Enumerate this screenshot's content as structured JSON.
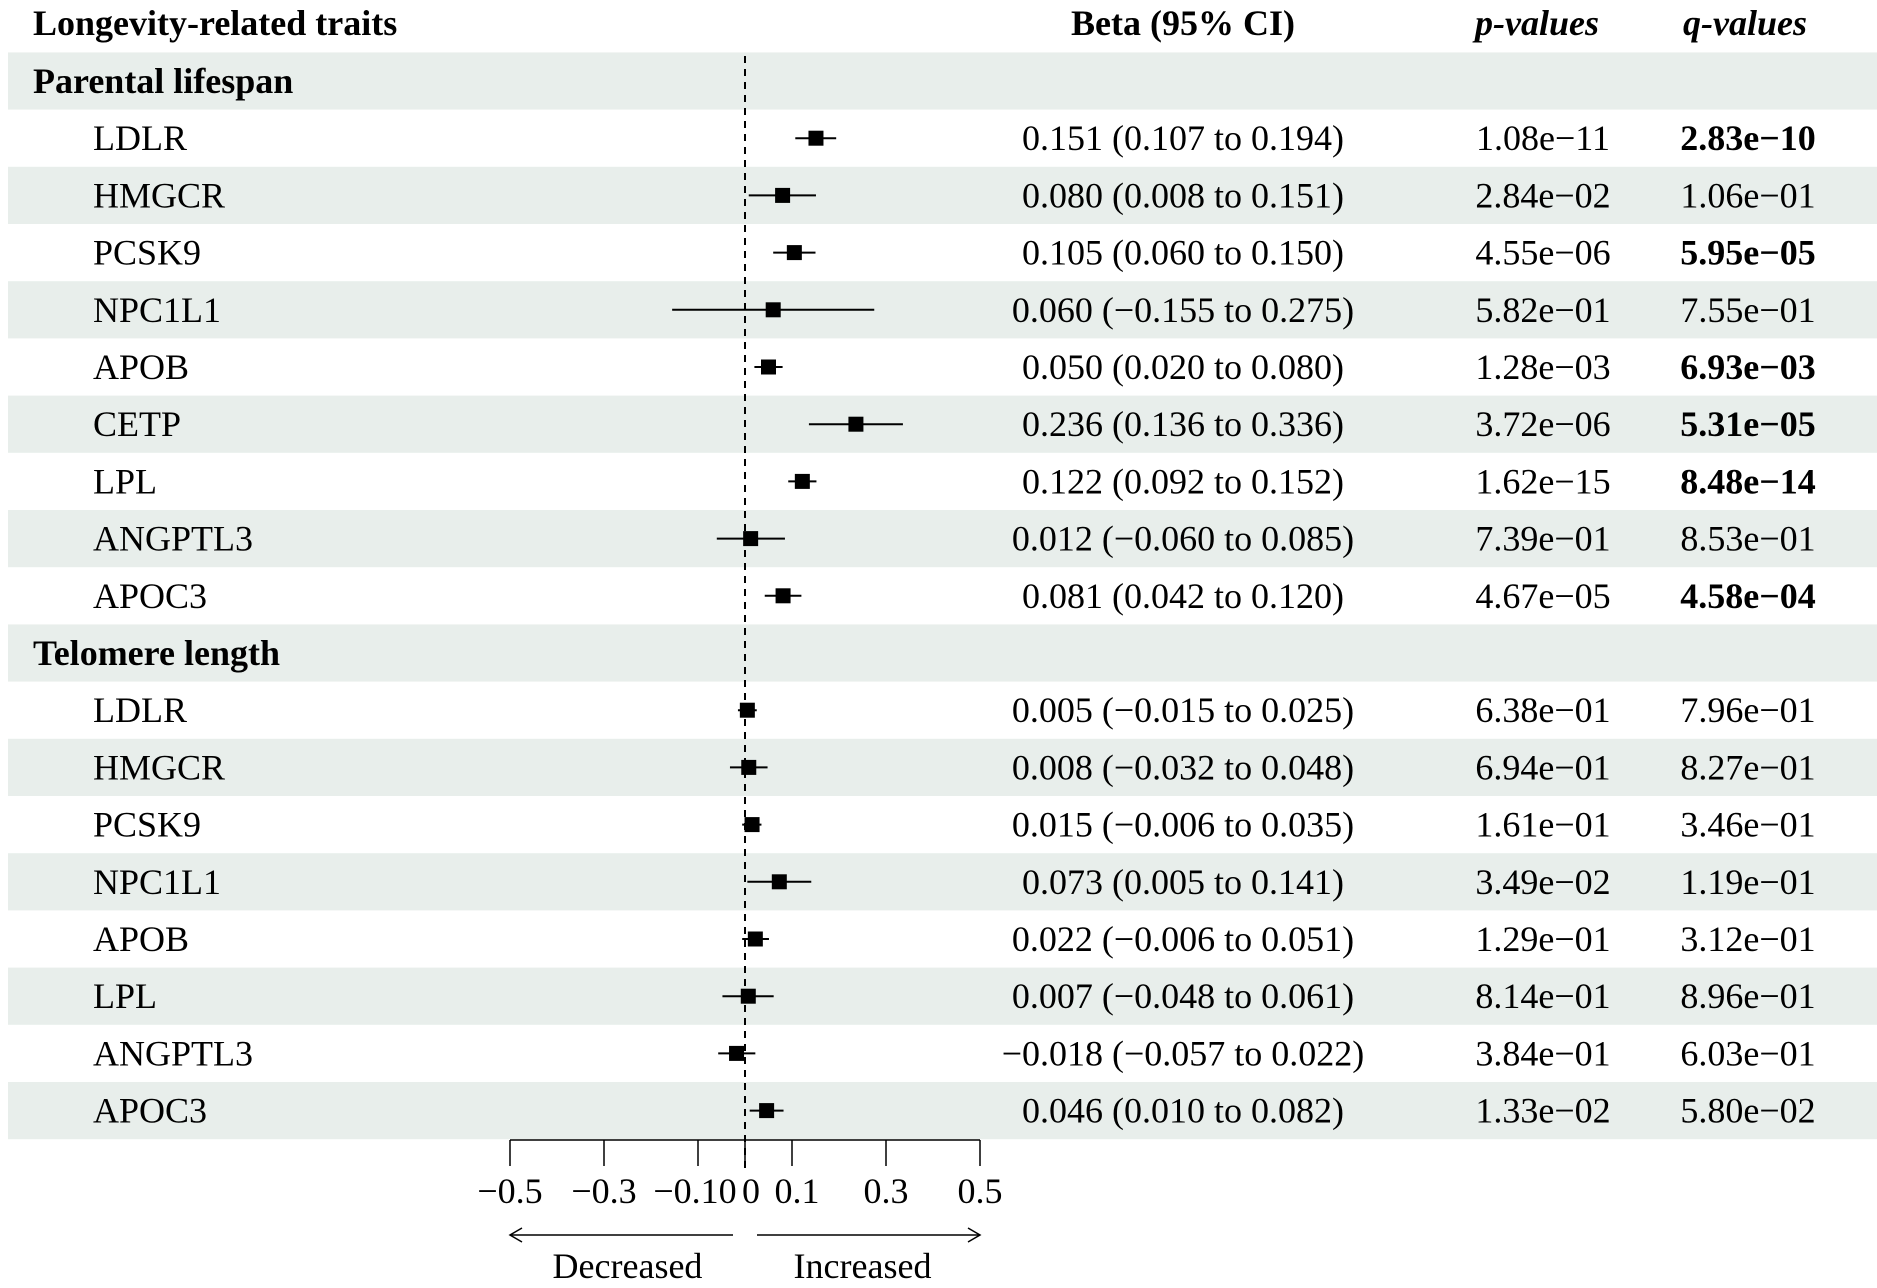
{
  "header": {
    "traits": "Longevity-related traits",
    "beta": "Beta (95% CI)",
    "p": "p-values",
    "q": "q-values"
  },
  "colors": {
    "band": "#e8eeeb",
    "mark": "#000000"
  },
  "chart_data": {
    "type": "forest",
    "xlim": [
      -0.5,
      0.5
    ],
    "x_ticks": [
      -0.5,
      -0.3,
      -0.1,
      0,
      0.1,
      0.3,
      0.5
    ],
    "x_tick_labels": [
      "−0.5",
      "−0.3",
      "−0.10",
      "0",
      "0.1",
      "0.3",
      "0.5"
    ],
    "reference_line": 0,
    "direction_labels": {
      "left": "Decreased",
      "right": "Increased"
    },
    "groups": [
      {
        "name": "Parental lifespan",
        "rows": [
          {
            "gene": "LDLR",
            "beta": 0.151,
            "lo": 0.107,
            "hi": 0.194,
            "ci_text": "0.151 (0.107 to 0.194)",
            "p": "1.08e−11",
            "q": "2.83e−10",
            "q_bold": true
          },
          {
            "gene": "HMGCR",
            "beta": 0.08,
            "lo": 0.008,
            "hi": 0.151,
            "ci_text": "0.080 (0.008 to 0.151)",
            "p": "2.84e−02",
            "q": "1.06e−01",
            "q_bold": false
          },
          {
            "gene": "PCSK9",
            "beta": 0.105,
            "lo": 0.06,
            "hi": 0.15,
            "ci_text": "0.105 (0.060 to 0.150)",
            "p": "4.55e−06",
            "q": "5.95e−05",
            "q_bold": true
          },
          {
            "gene": "NPC1L1",
            "beta": 0.06,
            "lo": -0.155,
            "hi": 0.275,
            "ci_text": "0.060 (−0.155 to 0.275)",
            "p": "5.82e−01",
            "q": "7.55e−01",
            "q_bold": false
          },
          {
            "gene": "APOB",
            "beta": 0.05,
            "lo": 0.02,
            "hi": 0.08,
            "ci_text": "0.050 (0.020 to 0.080)",
            "p": "1.28e−03",
            "q": "6.93e−03",
            "q_bold": true
          },
          {
            "gene": "CETP",
            "beta": 0.236,
            "lo": 0.136,
            "hi": 0.336,
            "ci_text": "0.236 (0.136 to 0.336)",
            "p": "3.72e−06",
            "q": "5.31e−05",
            "q_bold": true
          },
          {
            "gene": "LPL",
            "beta": 0.122,
            "lo": 0.092,
            "hi": 0.152,
            "ci_text": "0.122 (0.092 to 0.152)",
            "p": "1.62e−15",
            "q": "8.48e−14",
            "q_bold": true
          },
          {
            "gene": "ANGPTL3",
            "beta": 0.012,
            "lo": -0.06,
            "hi": 0.085,
            "ci_text": "0.012 (−0.060 to 0.085)",
            "p": "7.39e−01",
            "q": "8.53e−01",
            "q_bold": false
          },
          {
            "gene": "APOC3",
            "beta": 0.081,
            "lo": 0.042,
            "hi": 0.12,
            "ci_text": "0.081 (0.042 to 0.120)",
            "p": "4.67e−05",
            "q": "4.58e−04",
            "q_bold": true
          }
        ]
      },
      {
        "name": "Telomere length",
        "rows": [
          {
            "gene": "LDLR",
            "beta": 0.005,
            "lo": -0.015,
            "hi": 0.025,
            "ci_text": "0.005 (−0.015 to 0.025)",
            "p": "6.38e−01",
            "q": "7.96e−01",
            "q_bold": false
          },
          {
            "gene": "HMGCR",
            "beta": 0.008,
            "lo": -0.032,
            "hi": 0.048,
            "ci_text": "0.008 (−0.032 to 0.048)",
            "p": "6.94e−01",
            "q": "8.27e−01",
            "q_bold": false
          },
          {
            "gene": "PCSK9",
            "beta": 0.015,
            "lo": -0.006,
            "hi": 0.035,
            "ci_text": "0.015 (−0.006 to 0.035)",
            "p": "1.61e−01",
            "q": "3.46e−01",
            "q_bold": false
          },
          {
            "gene": "NPC1L1",
            "beta": 0.073,
            "lo": 0.005,
            "hi": 0.141,
            "ci_text": "0.073 (0.005 to 0.141)",
            "p": "3.49e−02",
            "q": "1.19e−01",
            "q_bold": false
          },
          {
            "gene": "APOB",
            "beta": 0.022,
            "lo": -0.006,
            "hi": 0.051,
            "ci_text": "0.022 (−0.006 to 0.051)",
            "p": "1.29e−01",
            "q": "3.12e−01",
            "q_bold": false
          },
          {
            "gene": "LPL",
            "beta": 0.007,
            "lo": -0.048,
            "hi": 0.061,
            "ci_text": "0.007 (−0.048 to 0.061)",
            "p": "8.14e−01",
            "q": "8.96e−01",
            "q_bold": false
          },
          {
            "gene": "ANGPTL3",
            "beta": -0.018,
            "lo": -0.057,
            "hi": 0.022,
            "ci_text": "−0.018 (−0.057 to 0.022)",
            "p": "3.84e−01",
            "q": "6.03e−01",
            "q_bold": false
          },
          {
            "gene": "APOC3",
            "beta": 0.046,
            "lo": 0.01,
            "hi": 0.082,
            "ci_text": "0.046 (0.010 to 0.082)",
            "p": "1.33e−02",
            "q": "5.80e−02",
            "q_bold": false
          }
        ]
      }
    ]
  }
}
